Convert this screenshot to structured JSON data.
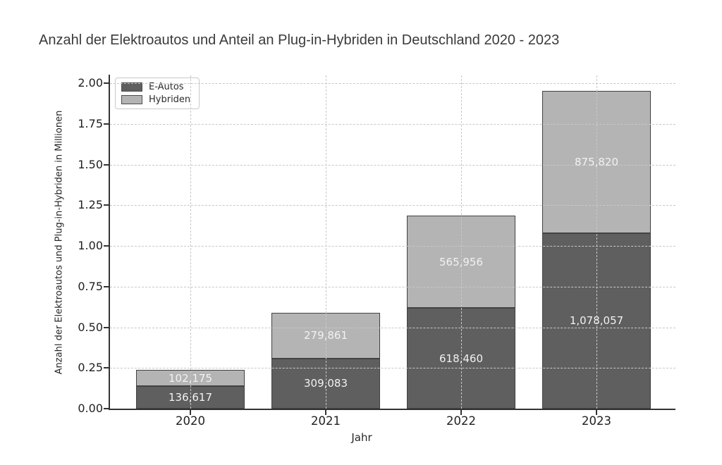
{
  "title": "Anzahl der Elektroautos und Anteil an Plug-in-Hybriden in Deutschland 2020 - 2023",
  "chart_data": {
    "type": "bar",
    "stacked": true,
    "title": "Anzahl der Elektroautos und Anteil an Plug-in-Hybriden in Deutschland 2020 - 2023",
    "xlabel": "Jahr",
    "ylabel": "Anzahl der Elektroautos und Plug-in-Hybriden in Millionen",
    "categories": [
      "2020",
      "2021",
      "2022",
      "2023"
    ],
    "series": [
      {
        "name": "E-Autos",
        "color": "#5f5f5f",
        "values": [
          136617,
          309083,
          618460,
          1078057
        ],
        "value_labels": [
          "136,617",
          "309,083",
          "618,460",
          "1,078,057"
        ]
      },
      {
        "name": "Hybriden",
        "color": "#b4b4b4",
        "values": [
          102175,
          279861,
          565956,
          875820
        ],
        "value_labels": [
          "102,175",
          "279,861",
          "565,956",
          "875,820"
        ]
      }
    ],
    "unit": "Millionen",
    "unit_scale": 1000000,
    "ylim": [
      0,
      2.05
    ],
    "yticks": [
      "0.00",
      "0.25",
      "0.50",
      "0.75",
      "1.00",
      "1.25",
      "1.50",
      "1.75",
      "2.00"
    ],
    "grid": "dashed, drawn above bars, horizontal and vertical",
    "legend_position": "upper left",
    "value_label_color": "#f2f2f2"
  }
}
